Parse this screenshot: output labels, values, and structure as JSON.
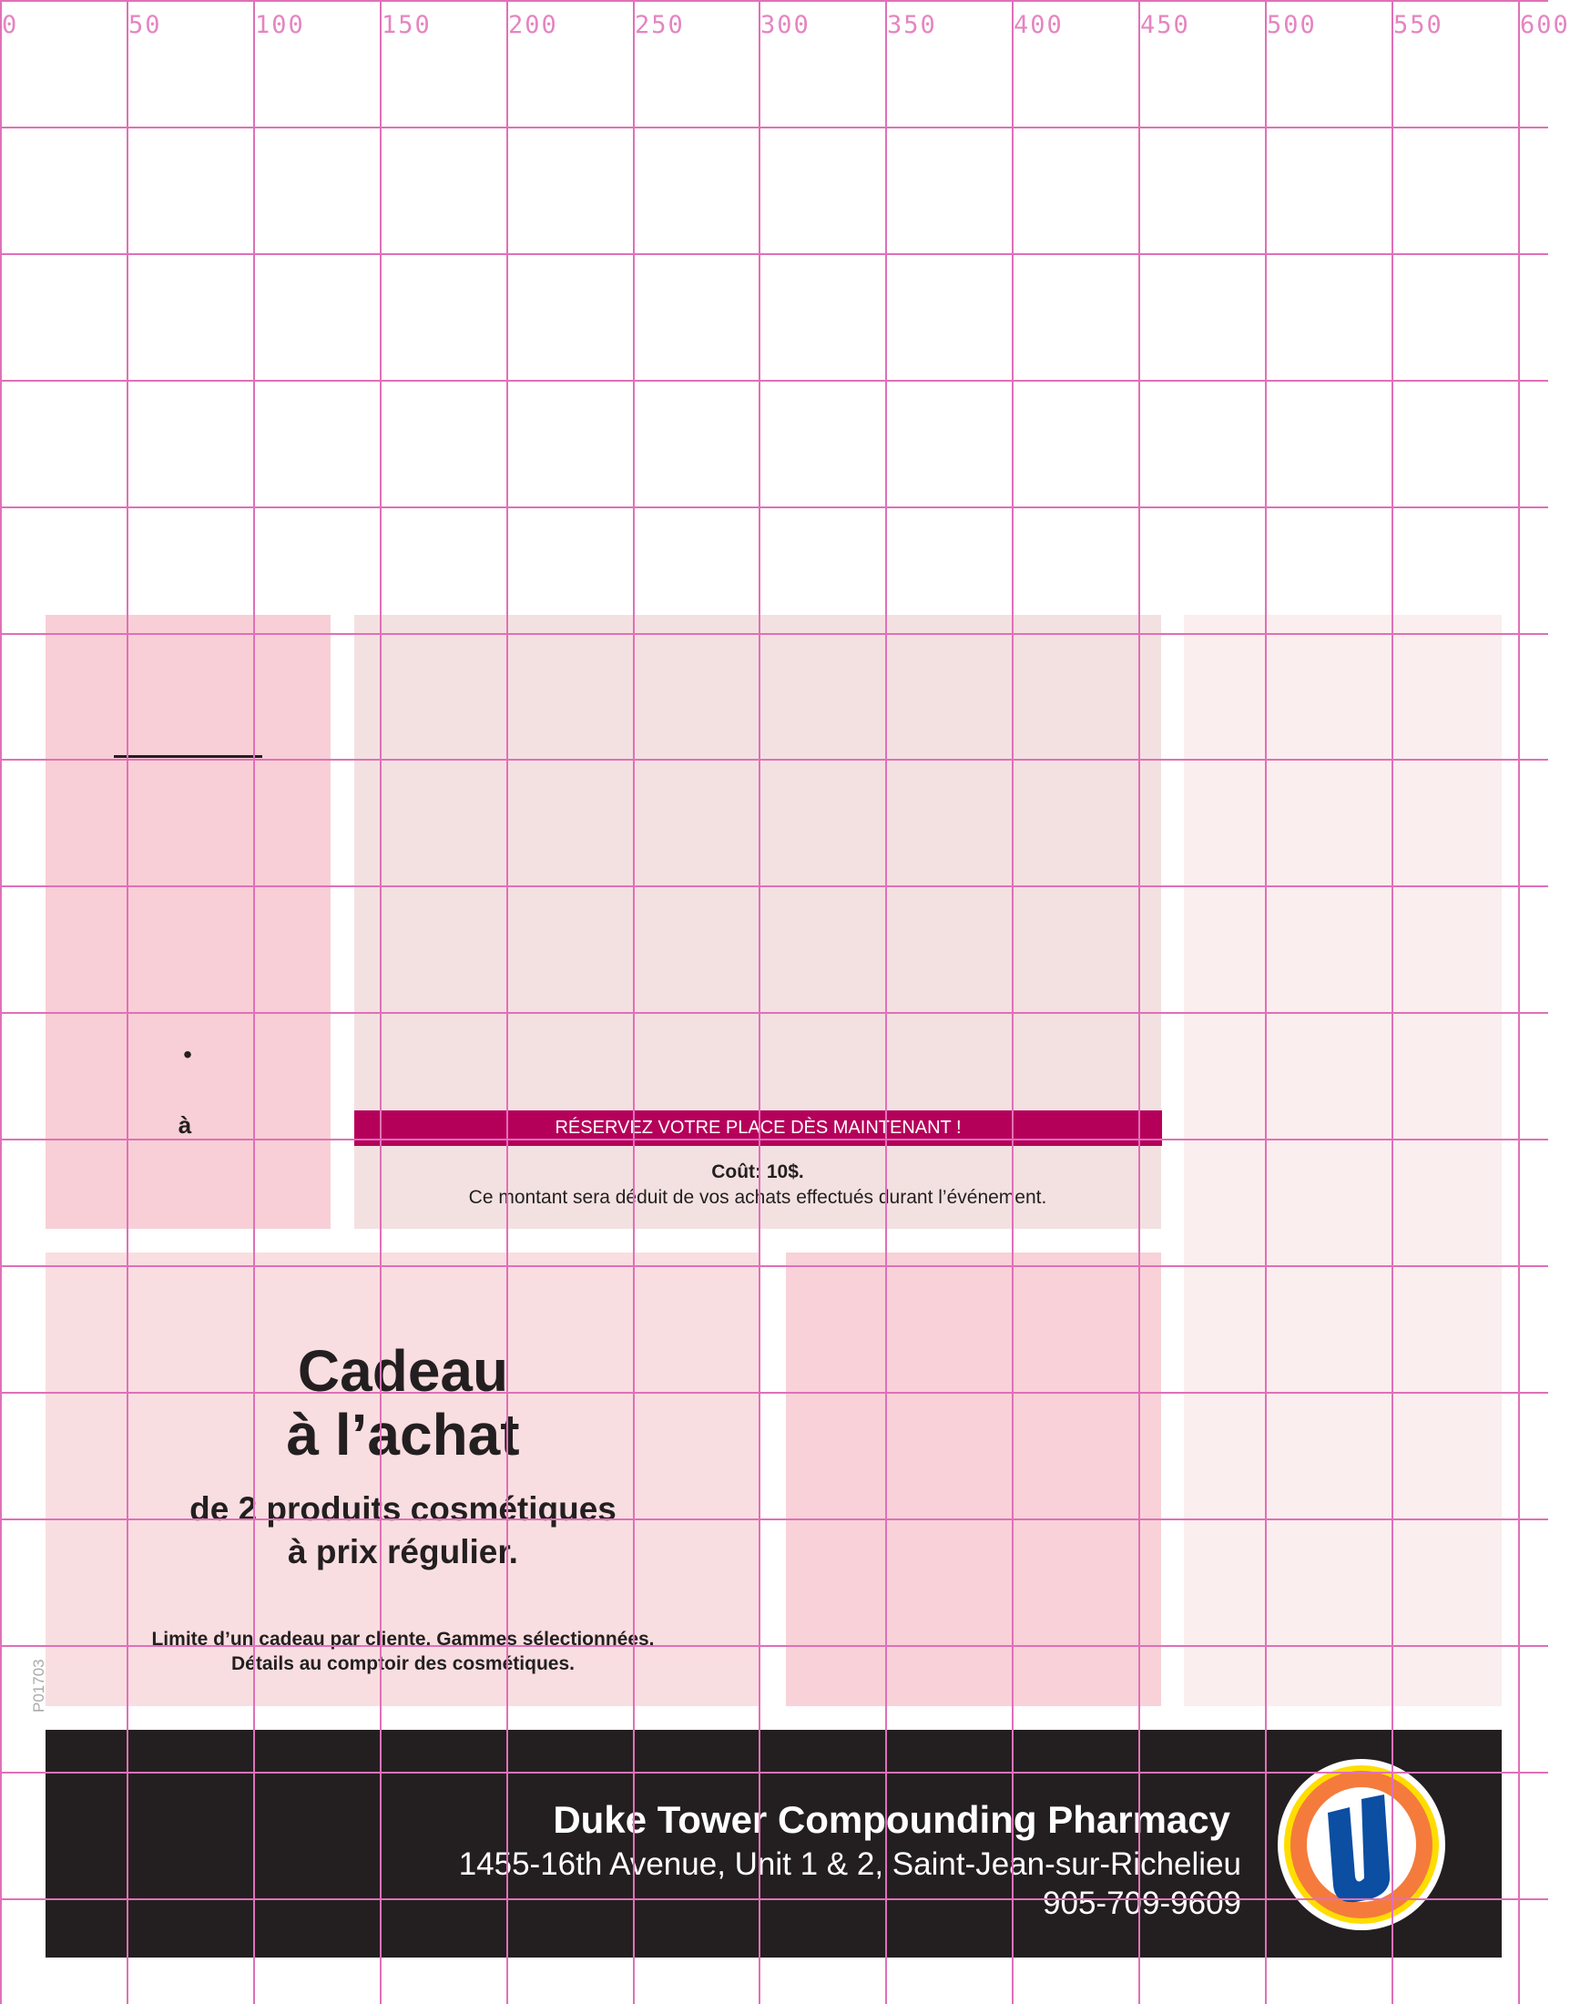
{
  "grid": {
    "labels": [
      "0",
      "50",
      "100",
      "150",
      "200",
      "250",
      "300",
      "350",
      "400",
      "450",
      "500",
      "550",
      "600"
    ],
    "color": "#e070b8"
  },
  "panels": {
    "left_line_present": true,
    "bullet": "•",
    "a_grave": "à"
  },
  "event": {
    "banner": "RÉSERVEZ VOTRE PLACE DÈS MAINTENANT !",
    "cost": "Coût: 10$.",
    "note": "Ce montant sera déduit de vos achats effectués durant l’événement.",
    "banner_color": "#b5005a"
  },
  "offer": {
    "title_line1": "Cadeau",
    "title_line2": "à l’achat",
    "subtitle_line1": "de 2 produits cosmétiques",
    "subtitle_line2": "à prix régulier.",
    "fine_line1": "Limite d’un cadeau par cliente. Gammes sélectionnées.",
    "fine_line2": "Détails au comptoir des cosmétiques.",
    "code": "P01703"
  },
  "footer": {
    "store_name": "Duke Tower Compounding Pharmacy",
    "address": "1455-16th Avenue, Unit 1 & 2, Saint-Jean-sur-Richelieu",
    "phone": "905-709-9609",
    "logo": "uniprix-u-logo",
    "background": "#231f20"
  },
  "colors": {
    "panel_left": "#f8cfd6",
    "panel_middle": "#f3e1e1",
    "panel_right": "#faeeee",
    "panel_bottom_left": "#f9dee1",
    "panel_bottom_middle": "#f8d2d8"
  }
}
